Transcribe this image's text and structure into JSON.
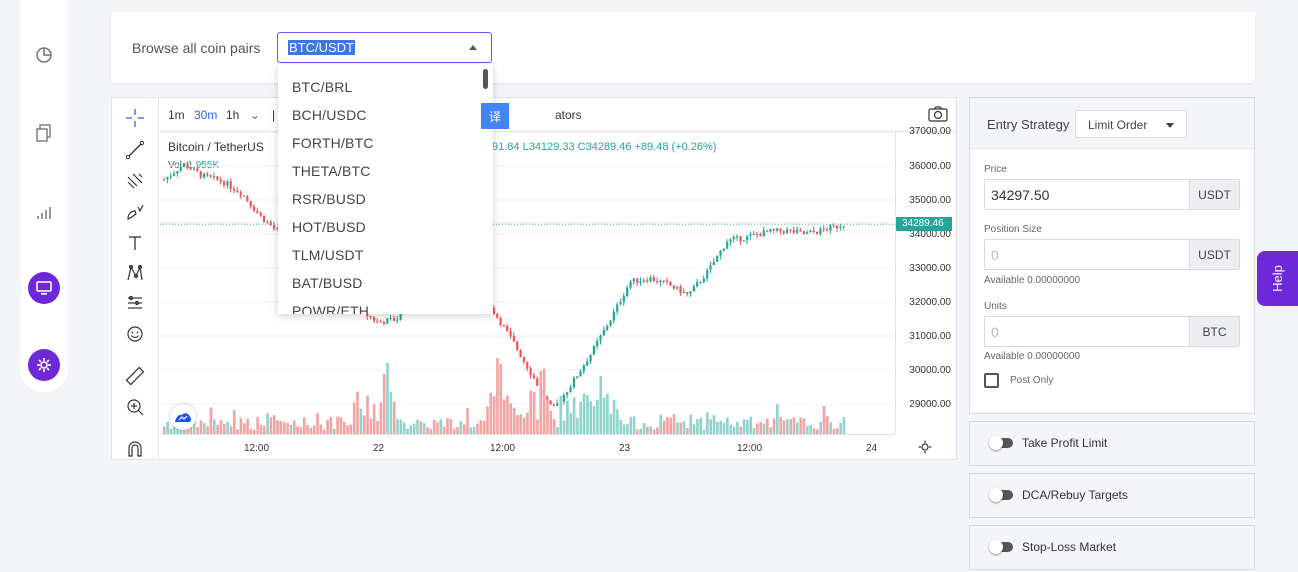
{
  "sidebar": {
    "icons": [
      "pie-chart-icon",
      "copy-icon",
      "signal-bars-icon",
      "monitor-icon",
      "settings-gear-icon"
    ]
  },
  "topcard": {
    "browse_label": "Browse all coin pairs",
    "selected_pair": "BTC/USDT"
  },
  "dropdown": {
    "items": [
      "BTC/BRL",
      "BCH/USDC",
      "FORTH/BTC",
      "THETA/BTC",
      "RSR/BUSD",
      "HOT/BUSD",
      "TLM/USDT",
      "BAT/BUSD",
      "POWR/ETH"
    ]
  },
  "chart": {
    "timeframes": [
      "1m",
      "30m",
      "1h"
    ],
    "active_timeframe": "30m",
    "indicators_label": "ators",
    "translate_button": "译",
    "symbol_title": "Bitcoin / TetherUS",
    "ohlc_text": "91.84 L34129.33 C34289.46 +89.48 (+0.26%)",
    "volume_label": "Vol",
    "volume_value": "1.955K",
    "price_labels": [
      "37000.00",
      "36000.00",
      "35000.00",
      "34000.00",
      "33000.00",
      "32000.00",
      "31000.00",
      "30000.00",
      "29000.00"
    ],
    "current_price": "34289.46",
    "time_labels": [
      "12:00",
      "22",
      "12:00",
      "23",
      "12:00",
      "24"
    ]
  },
  "chart_data": {
    "type": "candlestick",
    "symbol": "Bitcoin / TetherUS",
    "interval": "30m",
    "x_ticks": [
      "12:00",
      "22",
      "12:00",
      "23",
      "12:00",
      "24"
    ],
    "y_ticks": [
      37000,
      36000,
      35000,
      34000,
      33000,
      32000,
      31000,
      30000,
      29000
    ],
    "ylim": [
      28500,
      37000
    ],
    "last_price": 34289.46,
    "close_path": [
      35600,
      36050,
      35700,
      35550,
      35200,
      34500,
      34000,
      33700,
      33100,
      32400,
      31800,
      31400,
      31500,
      33200,
      33000,
      32600,
      32300,
      31700,
      30800,
      29800,
      28800,
      29600,
      30500,
      31500,
      32600,
      32700,
      32500,
      32200,
      32900,
      33800,
      33900,
      34050,
      34100,
      34000,
      34120,
      34289.46
    ],
    "volume_note": "volume bars shown under price, same colors"
  },
  "order": {
    "entry_label": "Entry Strategy",
    "entry_value": "Limit Order",
    "price_label": "Price",
    "price_value": "34297.50",
    "price_unit": "USDT",
    "size_label": "Position Size",
    "size_placeholder": "0",
    "size_unit": "USDT",
    "available_size": "Available 0.00000000",
    "units_label": "Units",
    "units_placeholder": "0",
    "units_unit": "BTC",
    "available_units": "Available 0.00000000",
    "post_only": "Post Only"
  },
  "accordions": [
    "Take Profit Limit",
    "DCA/Rebuy Targets",
    "Stop-Loss Market"
  ],
  "help": "Help",
  "colors": {
    "accent": "#6d28d9",
    "up": "#26a69a",
    "down": "#ef5350",
    "selection": "#3b78e7"
  }
}
